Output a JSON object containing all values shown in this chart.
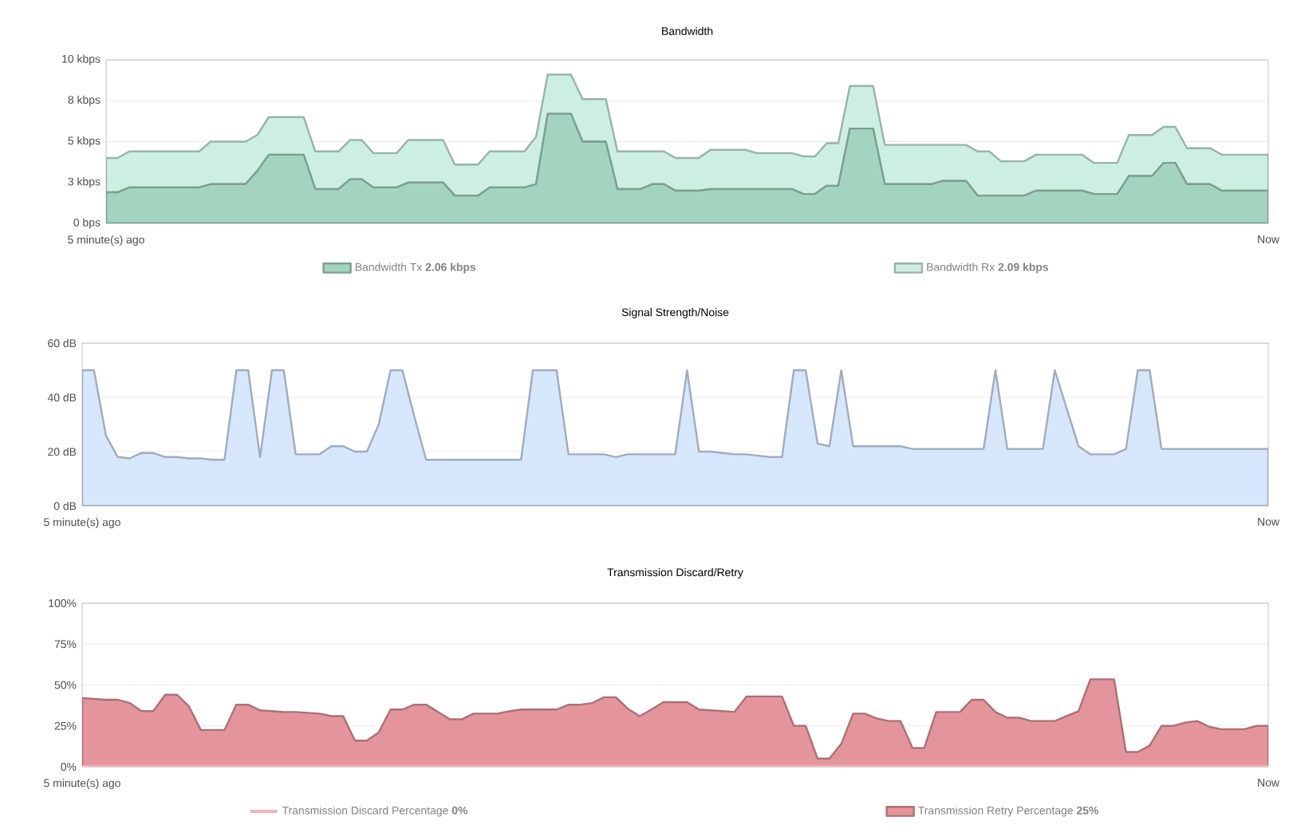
{
  "chart_data": [
    {
      "type": "area",
      "title": "Bandwidth",
      "stacked": true,
      "grid": "y",
      "legend": "bottom",
      "categories": [
        "5 minute(s) ago",
        null,
        null,
        null,
        null,
        null,
        null,
        null,
        null,
        null,
        null,
        null,
        null,
        null,
        null,
        null,
        null,
        null,
        null,
        null,
        null,
        null,
        null,
        null,
        null,
        null,
        null,
        null,
        null,
        null,
        null,
        null,
        null,
        null,
        null,
        null,
        null,
        null,
        null,
        null,
        null,
        null,
        null,
        null,
        null,
        null,
        null,
        null,
        null,
        null,
        null,
        null,
        null,
        null,
        null,
        null,
        null,
        null,
        null,
        null,
        null,
        null,
        null,
        null,
        null,
        null,
        null,
        null,
        null,
        null,
        null,
        null,
        null,
        null,
        null,
        null,
        null,
        null,
        null,
        null,
        null,
        null,
        null,
        null,
        null,
        null,
        null,
        null,
        null,
        null,
        null,
        null,
        null,
        null,
        null,
        null,
        null,
        null,
        null,
        null,
        "Now"
      ],
      "ylim": [
        0,
        10
      ],
      "yticks": [
        {
          "value": 0,
          "label": "0 bps"
        },
        {
          "value": 2.5,
          "label": "3 kbps"
        },
        {
          "value": 5,
          "label": "5 kbps"
        },
        {
          "value": 7.5,
          "label": "8 kbps"
        },
        {
          "value": 10,
          "label": "10 kbps"
        }
      ],
      "series": [
        {
          "name": "Bandwidth Tx **2.06 kbps**",
          "color": "#a3d4c0",
          "values": [
            1.9,
            1.9,
            2.2,
            2.2,
            2.2,
            2.2,
            2.2,
            2.2,
            2.2,
            2.4,
            2.4,
            2.4,
            2.4,
            3.2,
            4.2,
            4.2,
            4.2,
            4.2,
            2.1,
            2.1,
            2.1,
            2.7,
            2.7,
            2.2,
            2.2,
            2.2,
            2.5,
            2.5,
            2.5,
            2.5,
            1.7,
            1.7,
            1.7,
            2.2,
            2.2,
            2.2,
            2.2,
            2.4,
            6.7,
            6.7,
            6.7,
            5.0,
            5.0,
            5.0,
            2.1,
            2.1,
            2.1,
            2.4,
            2.4,
            2.0,
            2.0,
            2.0,
            2.1,
            2.1,
            2.1,
            2.1,
            2.1,
            2.1,
            2.1,
            2.1,
            1.8,
            1.8,
            2.3,
            2.3,
            5.8,
            5.8,
            5.8,
            2.4,
            2.4,
            2.4,
            2.4,
            2.4,
            2.6,
            2.6,
            2.6,
            1.7,
            1.7,
            1.7,
            1.7,
            1.7,
            2.0,
            2.0,
            2.0,
            2.0,
            2.0,
            1.8,
            1.8,
            1.8,
            2.9,
            2.9,
            2.9,
            3.7,
            3.7,
            2.4,
            2.4,
            2.4,
            2.0,
            2.0,
            2.0,
            2.0,
            2.0
          ]
        },
        {
          "name": "Bandwidth Rx **2.09 kbps**",
          "color": "#cdeee2",
          "values": [
            2.1,
            2.1,
            2.2,
            2.2,
            2.2,
            2.2,
            2.2,
            2.2,
            2.2,
            2.6,
            2.6,
            2.6,
            2.6,
            2.2,
            2.3,
            2.3,
            2.3,
            2.3,
            2.3,
            2.3,
            2.3,
            2.4,
            2.4,
            2.1,
            2.1,
            2.1,
            2.6,
            2.6,
            2.6,
            2.6,
            1.9,
            1.9,
            1.9,
            2.2,
            2.2,
            2.2,
            2.2,
            2.9,
            2.4,
            2.4,
            2.4,
            2.6,
            2.6,
            2.6,
            2.3,
            2.3,
            2.3,
            2.0,
            2.0,
            2.0,
            2.0,
            2.0,
            2.4,
            2.4,
            2.4,
            2.4,
            2.2,
            2.2,
            2.2,
            2.2,
            2.3,
            2.3,
            2.6,
            2.6,
            2.6,
            2.6,
            2.6,
            2.4,
            2.4,
            2.4,
            2.4,
            2.4,
            2.2,
            2.2,
            2.2,
            2.7,
            2.7,
            2.1,
            2.1,
            2.1,
            2.2,
            2.2,
            2.2,
            2.2,
            2.2,
            1.9,
            1.9,
            1.9,
            2.5,
            2.5,
            2.5,
            2.2,
            2.2,
            2.2,
            2.2,
            2.2,
            2.2,
            2.2,
            2.2,
            2.2,
            2.2
          ]
        }
      ]
    },
    {
      "type": "area",
      "title": "Signal Strength/Noise",
      "grid": "y",
      "categories": [
        "5 minute(s) ago",
        null,
        null,
        null,
        null,
        null,
        null,
        null,
        null,
        null,
        null,
        null,
        null,
        null,
        null,
        null,
        null,
        null,
        null,
        null,
        null,
        null,
        null,
        null,
        null,
        null,
        null,
        null,
        null,
        null,
        null,
        null,
        null,
        null,
        null,
        null,
        null,
        null,
        null,
        null,
        null,
        null,
        null,
        null,
        null,
        null,
        null,
        null,
        null,
        null,
        null,
        null,
        null,
        null,
        null,
        null,
        null,
        null,
        null,
        null,
        null,
        null,
        null,
        null,
        null,
        null,
        null,
        null,
        null,
        null,
        null,
        null,
        null,
        null,
        null,
        null,
        null,
        null,
        null,
        null,
        null,
        null,
        null,
        null,
        null,
        null,
        null,
        null,
        null,
        null,
        null,
        null,
        null,
        null,
        null,
        null,
        null,
        null,
        null,
        null,
        "Now"
      ],
      "ylim": [
        0,
        60
      ],
      "yticks": [
        {
          "value": 0,
          "label": "0 dB"
        },
        {
          "value": 20,
          "label": "20 dB"
        },
        {
          "value": 40,
          "label": "40 dB"
        },
        {
          "value": 60,
          "label": "60 dB"
        }
      ],
      "series": [
        {
          "color": "#d6e6fb",
          "values": [
            50,
            50,
            26,
            18,
            17.5,
            19.5,
            19.5,
            18,
            18,
            17.5,
            17.5,
            17,
            17,
            50,
            50,
            18,
            50,
            50,
            19,
            19,
            19,
            22,
            22,
            20,
            20,
            30,
            50,
            50,
            33,
            17,
            17,
            17,
            17,
            17,
            17,
            17,
            17,
            17,
            50,
            50,
            50,
            19,
            19,
            19,
            19,
            18,
            19,
            19,
            19,
            19,
            19,
            50,
            20,
            20,
            19.5,
            19,
            19,
            18.5,
            18,
            18,
            50,
            50,
            23,
            22,
            50,
            22,
            22,
            22,
            22,
            22,
            21,
            21,
            21,
            21,
            21,
            21,
            21,
            50,
            21,
            21,
            21,
            21,
            50,
            36,
            22,
            19,
            19,
            19,
            21,
            50,
            50,
            21,
            21,
            21,
            21,
            21,
            21,
            21,
            21,
            21,
            21
          ]
        }
      ]
    },
    {
      "type": "area",
      "title": "Transmission Discard/Retry",
      "grid": "y",
      "legend": "bottom",
      "categories": [
        "5 minute(s) ago",
        null,
        null,
        null,
        null,
        null,
        null,
        null,
        null,
        null,
        null,
        null,
        null,
        null,
        null,
        null,
        null,
        null,
        null,
        null,
        null,
        null,
        null,
        null,
        null,
        null,
        null,
        null,
        null,
        null,
        null,
        null,
        null,
        null,
        null,
        null,
        null,
        null,
        null,
        null,
        null,
        null,
        null,
        null,
        null,
        null,
        null,
        null,
        null,
        null,
        null,
        null,
        null,
        null,
        null,
        null,
        null,
        null,
        null,
        null,
        null,
        null,
        null,
        null,
        null,
        null,
        null,
        null,
        null,
        null,
        null,
        null,
        null,
        null,
        null,
        null,
        null,
        null,
        null,
        null,
        null,
        null,
        null,
        null,
        null,
        null,
        null,
        null,
        null,
        null,
        null,
        null,
        null,
        null,
        null,
        null,
        null,
        null,
        null,
        null,
        "Now"
      ],
      "ylim": [
        0,
        100
      ],
      "yticks": [
        {
          "value": 0,
          "label": "0%"
        },
        {
          "value": 25,
          "label": "25%"
        },
        {
          "value": 50,
          "label": "50%"
        },
        {
          "value": 75,
          "label": "75%"
        },
        {
          "value": 100,
          "label": "100%"
        }
      ],
      "series": [
        {
          "name": "Transmission Discard Percentage **0%**",
          "type": "line",
          "color": "#f0b4bb",
          "values": [
            0,
            0,
            0,
            0,
            0,
            0,
            0,
            0,
            0,
            0,
            0,
            0,
            0,
            0,
            0,
            0,
            0,
            0,
            0,
            0,
            0,
            0,
            0,
            0,
            0,
            0,
            0,
            0,
            0,
            0,
            0,
            0,
            0,
            0,
            0,
            0,
            0,
            0,
            0,
            0,
            0,
            0,
            0,
            0,
            0,
            0,
            0,
            0,
            0,
            0,
            0,
            0,
            0,
            0,
            0,
            0,
            0,
            0,
            0,
            0,
            0,
            0,
            0,
            0,
            0,
            0,
            0,
            0,
            0,
            0,
            0,
            0,
            0,
            0,
            0,
            0,
            0,
            0,
            0,
            0,
            0,
            0,
            0,
            0,
            0,
            0,
            0,
            0,
            0,
            0,
            0,
            0,
            0,
            0,
            0,
            0,
            0,
            0,
            0,
            0,
            0
          ]
        },
        {
          "name": "Transmission Retry Percentage **25%**",
          "color": "#e4959c",
          "values": [
            42,
            41.5,
            41,
            41,
            39,
            34,
            34,
            44,
            44,
            37,
            22.5,
            22.5,
            22.5,
            38,
            38,
            34.5,
            34,
            33.5,
            33.5,
            33,
            32.5,
            31,
            31,
            16,
            16,
            21,
            35,
            35,
            38,
            38,
            33.5,
            29,
            29,
            32.5,
            32.5,
            32.5,
            34,
            35,
            35,
            35,
            35,
            38,
            38,
            39,
            42.5,
            42.5,
            35.5,
            31,
            35,
            39.5,
            39.5,
            39.5,
            35,
            34.5,
            34,
            33.5,
            43,
            43,
            43,
            43,
            25,
            25,
            5,
            5,
            14,
            32.5,
            32.5,
            29.5,
            28,
            28,
            11.5,
            11.5,
            33.5,
            33.5,
            33.5,
            41,
            41,
            33.5,
            30,
            30,
            28,
            28,
            28,
            31,
            34,
            53.5,
            53.5,
            53.5,
            9,
            9,
            13,
            25,
            25,
            27,
            28,
            24.5,
            23,
            23,
            23,
            25,
            25
          ]
        }
      ]
    }
  ]
}
